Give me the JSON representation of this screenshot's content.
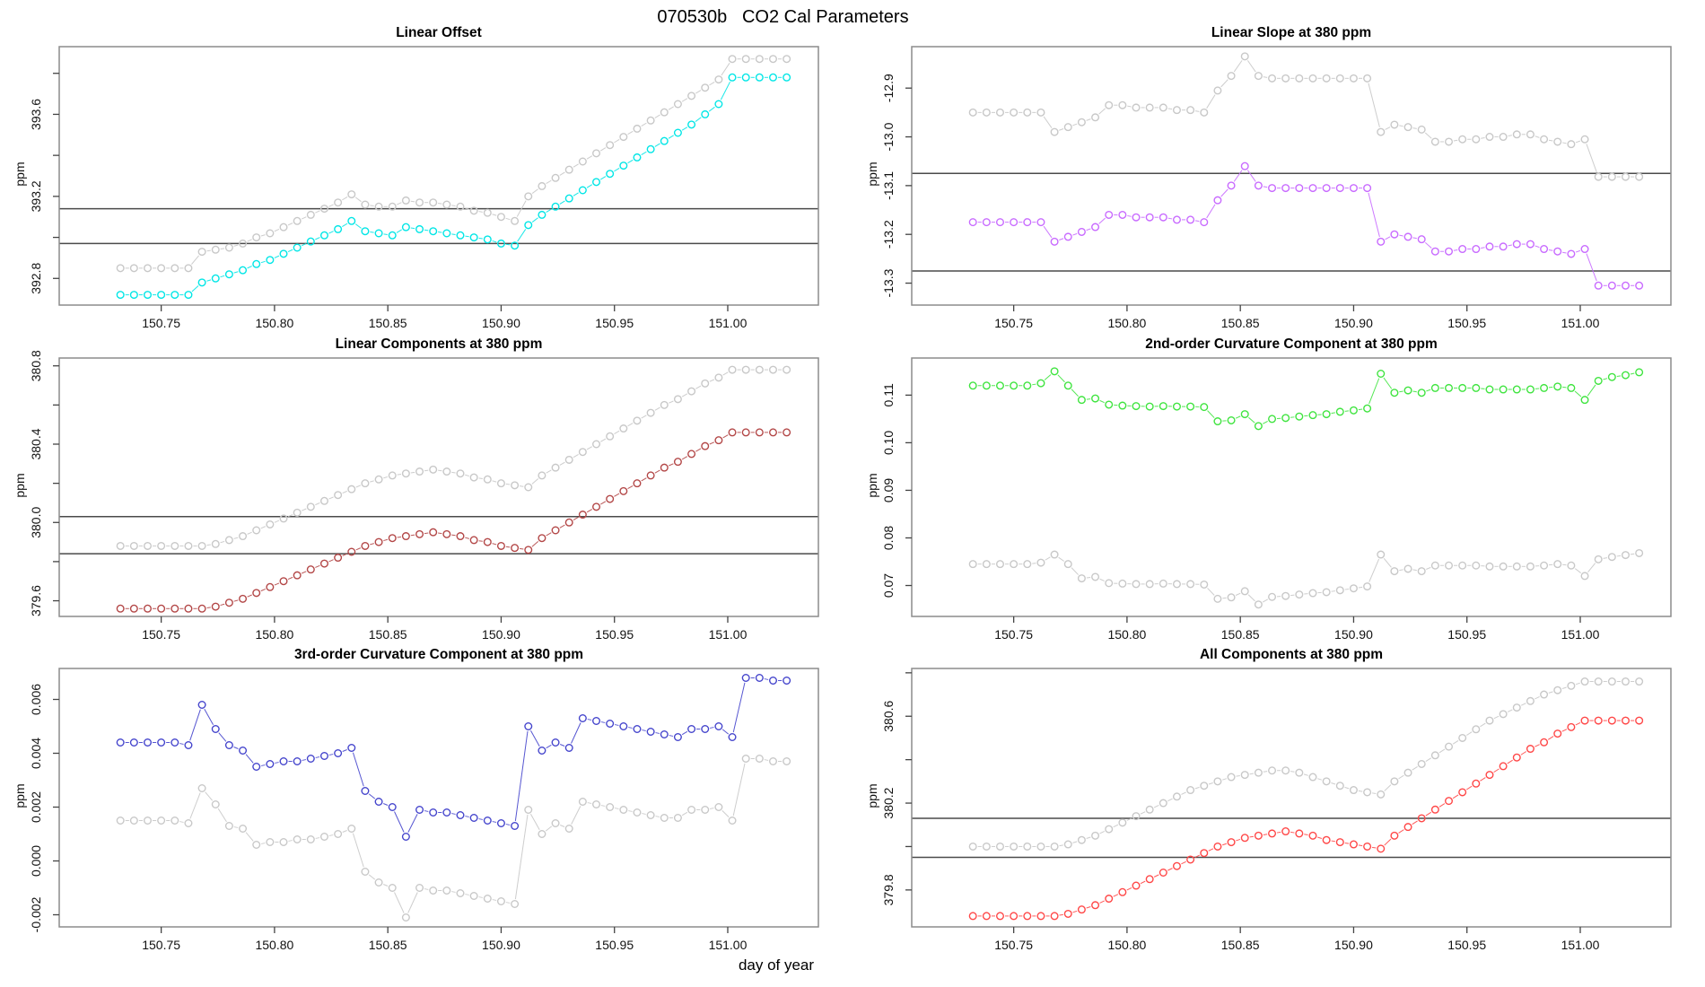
{
  "figure": {
    "title": "070530b   CO2 Cal Parameters",
    "xlabel": "day of year",
    "background": "#ffffff",
    "box_color": "#8c8c8c",
    "ref_line_color": "#4a4a4a",
    "tick_color": "#444444",
    "tick_label_color": "#111111",
    "x_lim": [
      150.705,
      151.04
    ],
    "x_ticks": [
      {
        "v": 150.75,
        "label": "150.75"
      },
      {
        "v": 150.8,
        "label": "150.80"
      },
      {
        "v": 150.85,
        "label": "150.85"
      },
      {
        "v": 150.9,
        "label": "150.90"
      },
      {
        "v": 150.95,
        "label": "150.95"
      },
      {
        "v": 151.0,
        "label": "151.00"
      }
    ],
    "x_days": [
      150.732,
      150.738,
      150.744,
      150.75,
      150.756,
      150.762,
      150.768,
      150.774,
      150.78,
      150.786,
      150.792,
      150.798,
      150.804,
      150.81,
      150.816,
      150.822,
      150.828,
      150.834,
      150.84,
      150.846,
      150.852,
      150.858,
      150.864,
      150.87,
      150.876,
      150.882,
      150.888,
      150.894,
      150.9,
      150.906,
      150.912,
      150.918,
      150.924,
      150.93,
      150.936,
      150.942,
      150.948,
      150.954,
      150.96,
      150.966,
      150.972,
      150.978,
      150.984,
      150.99,
      150.996,
      151.002,
      151.008,
      151.014,
      151.02,
      151.026
    ]
  },
  "chart_data": [
    {
      "type": "scatter",
      "title": "Linear Offset",
      "ylabel": "ppm",
      "ylim": [
        392.67,
        393.93
      ],
      "yticks": [
        {
          "v": 392.8,
          "label": "392.8"
        },
        {
          "v": 393.0,
          "label": ""
        },
        {
          "v": 393.2,
          "label": "393.2"
        },
        {
          "v": 393.4,
          "label": ""
        },
        {
          "v": 393.6,
          "label": "393.6"
        },
        {
          "v": 393.8,
          "label": ""
        }
      ],
      "ref_lines": [
        393.14,
        392.97
      ],
      "series": [
        {
          "name": "gray-circles",
          "color": "#c8c8c8",
          "values": [
            392.85,
            392.85,
            392.85,
            392.85,
            392.85,
            392.85,
            392.93,
            392.94,
            392.95,
            392.97,
            393.0,
            393.02,
            393.05,
            393.08,
            393.11,
            393.14,
            393.17,
            393.21,
            393.16,
            393.15,
            393.15,
            393.18,
            393.17,
            393.17,
            393.16,
            393.15,
            393.13,
            393.12,
            393.1,
            393.08,
            393.2,
            393.25,
            393.29,
            393.33,
            393.37,
            393.41,
            393.45,
            393.49,
            393.53,
            393.57,
            393.61,
            393.65,
            393.69,
            393.73,
            393.77,
            393.87,
            393.87,
            393.87,
            393.87,
            393.87
          ]
        },
        {
          "name": "cyan-circles",
          "color": "#00e6e6",
          "values": [
            392.72,
            392.72,
            392.72,
            392.72,
            392.72,
            392.72,
            392.78,
            392.8,
            392.82,
            392.84,
            392.87,
            392.89,
            392.92,
            392.95,
            392.98,
            393.01,
            393.04,
            393.08,
            393.03,
            393.02,
            393.01,
            393.05,
            393.04,
            393.03,
            393.02,
            393.01,
            393.0,
            392.99,
            392.97,
            392.96,
            393.06,
            393.11,
            393.15,
            393.19,
            393.23,
            393.27,
            393.31,
            393.35,
            393.39,
            393.43,
            393.47,
            393.51,
            393.55,
            393.6,
            393.65,
            393.78,
            393.78,
            393.78,
            393.78,
            393.78
          ]
        }
      ]
    },
    {
      "type": "scatter",
      "title": "Linear Slope at 380 ppm",
      "ylabel": "ppm",
      "ylim": [
        -13.345,
        -12.815
      ],
      "yticks": [
        {
          "v": -13.3,
          "label": "-13.3"
        },
        {
          "v": -13.2,
          "label": "-13.2"
        },
        {
          "v": -13.1,
          "label": "-13.1"
        },
        {
          "v": -13.0,
          "label": "-13.0"
        },
        {
          "v": -12.9,
          "label": "-12.9"
        }
      ],
      "ref_lines": [
        -13.075,
        -13.275
      ],
      "series": [
        {
          "name": "gray-circles",
          "color": "#c8c8c8",
          "values": [
            -12.95,
            -12.95,
            -12.95,
            -12.95,
            -12.95,
            -12.95,
            -12.99,
            -12.98,
            -12.97,
            -12.96,
            -12.935,
            -12.935,
            -12.94,
            -12.94,
            -12.94,
            -12.945,
            -12.945,
            -12.95,
            -12.905,
            -12.875,
            -12.835,
            -12.875,
            -12.88,
            -12.88,
            -12.88,
            -12.88,
            -12.88,
            -12.88,
            -12.88,
            -12.88,
            -12.99,
            -12.975,
            -12.98,
            -12.985,
            -13.01,
            -13.01,
            -13.005,
            -13.005,
            -13.0,
            -13.0,
            -12.995,
            -12.995,
            -13.005,
            -13.01,
            -13.015,
            -13.005,
            -13.082,
            -13.082,
            -13.082,
            -13.082
          ]
        },
        {
          "name": "magenta-circles",
          "color": "#c86aff",
          "values": [
            -13.175,
            -13.175,
            -13.175,
            -13.175,
            -13.175,
            -13.175,
            -13.215,
            -13.205,
            -13.195,
            -13.185,
            -13.16,
            -13.16,
            -13.165,
            -13.165,
            -13.165,
            -13.17,
            -13.17,
            -13.175,
            -13.13,
            -13.1,
            -13.06,
            -13.1,
            -13.105,
            -13.105,
            -13.105,
            -13.105,
            -13.105,
            -13.105,
            -13.105,
            -13.105,
            -13.215,
            -13.2,
            -13.205,
            -13.21,
            -13.235,
            -13.235,
            -13.23,
            -13.23,
            -13.225,
            -13.225,
            -13.22,
            -13.22,
            -13.23,
            -13.235,
            -13.24,
            -13.23,
            -13.305,
            -13.305,
            -13.305,
            -13.305
          ]
        }
      ]
    },
    {
      "type": "scatter",
      "title": "Linear Components at 380 ppm",
      "ylabel": "ppm",
      "ylim": [
        379.52,
        380.84
      ],
      "yticks": [
        {
          "v": 379.6,
          "label": "379.6"
        },
        {
          "v": 379.8,
          "label": ""
        },
        {
          "v": 380.0,
          "label": "380.0"
        },
        {
          "v": 380.2,
          "label": ""
        },
        {
          "v": 380.4,
          "label": "380.4"
        },
        {
          "v": 380.6,
          "label": ""
        },
        {
          "v": 380.8,
          "label": "380.8"
        }
      ],
      "ref_lines": [
        380.03,
        379.84
      ],
      "series": [
        {
          "name": "gray-circles",
          "color": "#c8c8c8",
          "values": [
            379.88,
            379.88,
            379.88,
            379.88,
            379.88,
            379.88,
            379.88,
            379.89,
            379.91,
            379.93,
            379.96,
            379.99,
            380.02,
            380.05,
            380.08,
            380.11,
            380.14,
            380.17,
            380.2,
            380.22,
            380.24,
            380.25,
            380.26,
            380.27,
            380.26,
            380.25,
            380.23,
            380.22,
            380.2,
            380.19,
            380.18,
            380.24,
            380.28,
            380.32,
            380.36,
            380.4,
            380.44,
            380.48,
            380.52,
            380.56,
            380.6,
            380.63,
            380.67,
            380.71,
            380.74,
            380.78,
            380.78,
            380.78,
            380.78,
            380.78
          ]
        },
        {
          "name": "darkred-circles",
          "color": "#b34747",
          "values": [
            379.56,
            379.56,
            379.56,
            379.56,
            379.56,
            379.56,
            379.56,
            379.57,
            379.59,
            379.61,
            379.64,
            379.67,
            379.7,
            379.73,
            379.76,
            379.79,
            379.82,
            379.85,
            379.88,
            379.9,
            379.92,
            379.93,
            379.94,
            379.95,
            379.94,
            379.93,
            379.91,
            379.9,
            379.88,
            379.87,
            379.86,
            379.92,
            379.96,
            380.0,
            380.04,
            380.08,
            380.12,
            380.16,
            380.2,
            380.24,
            380.28,
            380.31,
            380.35,
            380.39,
            380.42,
            380.46,
            380.46,
            380.46,
            380.46,
            380.46
          ]
        }
      ]
    },
    {
      "type": "scatter",
      "title": "2nd-order Curvature Component at 380 ppm",
      "ylabel": "ppm",
      "ylim": [
        0.0635,
        0.1178
      ],
      "yticks": [
        {
          "v": 0.07,
          "label": "0.07"
        },
        {
          "v": 0.08,
          "label": "0.08"
        },
        {
          "v": 0.09,
          "label": "0.09"
        },
        {
          "v": 0.1,
          "label": "0.10"
        },
        {
          "v": 0.11,
          "label": "0.11"
        }
      ],
      "ref_lines": [],
      "series": [
        {
          "name": "gray-circles",
          "color": "#c8c8c8",
          "values": [
            0.0745,
            0.0745,
            0.0745,
            0.0745,
            0.0745,
            0.0748,
            0.0765,
            0.0745,
            0.0715,
            0.0718,
            0.0705,
            0.0704,
            0.0703,
            0.0703,
            0.0704,
            0.0703,
            0.0703,
            0.0702,
            0.0672,
            0.0675,
            0.0688,
            0.066,
            0.0676,
            0.0678,
            0.0681,
            0.0684,
            0.0686,
            0.069,
            0.0694,
            0.0698,
            0.0765,
            0.073,
            0.0735,
            0.073,
            0.0742,
            0.0742,
            0.0742,
            0.0742,
            0.074,
            0.074,
            0.074,
            0.074,
            0.0742,
            0.0745,
            0.0742,
            0.072,
            0.0755,
            0.076,
            0.0764,
            0.0768
          ]
        },
        {
          "name": "green-circles",
          "color": "#3fe43f",
          "values": [
            0.112,
            0.112,
            0.112,
            0.112,
            0.112,
            0.1125,
            0.115,
            0.112,
            0.109,
            0.1093,
            0.108,
            0.1078,
            0.1077,
            0.1076,
            0.1077,
            0.1076,
            0.1076,
            0.1075,
            0.1045,
            0.1047,
            0.106,
            0.1035,
            0.105,
            0.1052,
            0.1055,
            0.1058,
            0.106,
            0.1065,
            0.1068,
            0.1072,
            0.1145,
            0.1105,
            0.111,
            0.1105,
            0.1115,
            0.1115,
            0.1115,
            0.1115,
            0.1112,
            0.1112,
            0.1112,
            0.1112,
            0.1115,
            0.1118,
            0.1115,
            0.109,
            0.113,
            0.1138,
            0.1142,
            0.1148
          ]
        }
      ]
    },
    {
      "type": "scatter",
      "title": "3rd-order Curvature Component at 380 ppm",
      "ylabel": "ppm",
      "ylim": [
        -0.00245,
        0.00715
      ],
      "yticks": [
        {
          "v": -0.002,
          "label": "-0.002"
        },
        {
          "v": 0.0,
          "label": "0.000"
        },
        {
          "v": 0.002,
          "label": "0.002"
        },
        {
          "v": 0.004,
          "label": "0.004"
        },
        {
          "v": 0.006,
          "label": "0.006"
        }
      ],
      "ref_lines": [],
      "series": [
        {
          "name": "gray-circles",
          "color": "#c8c8c8",
          "values": [
            0.0015,
            0.0015,
            0.0015,
            0.0015,
            0.0015,
            0.0014,
            0.0027,
            0.0021,
            0.0013,
            0.0012,
            0.0006,
            0.0007,
            0.0007,
            0.0008,
            0.0008,
            0.0009,
            0.001,
            0.0012,
            -0.0004,
            -0.0008,
            -0.001,
            -0.0021,
            -0.001,
            -0.0011,
            -0.0011,
            -0.0012,
            -0.0013,
            -0.0014,
            -0.0015,
            -0.0016,
            0.0019,
            0.001,
            0.0014,
            0.0012,
            0.0022,
            0.0021,
            0.002,
            0.0019,
            0.0018,
            0.0017,
            0.0016,
            0.0016,
            0.0019,
            0.0019,
            0.002,
            0.0015,
            0.0038,
            0.0038,
            0.0037,
            0.0037
          ]
        },
        {
          "name": "blue-circles",
          "color": "#4444cc",
          "values": [
            0.0044,
            0.0044,
            0.0044,
            0.0044,
            0.0044,
            0.0043,
            0.0058,
            0.0049,
            0.0043,
            0.0041,
            0.0035,
            0.0036,
            0.0037,
            0.0037,
            0.0038,
            0.0039,
            0.004,
            0.0042,
            0.0026,
            0.0022,
            0.002,
            0.0009,
            0.0019,
            0.0018,
            0.0018,
            0.0017,
            0.0016,
            0.0015,
            0.0014,
            0.0013,
            0.005,
            0.0041,
            0.0044,
            0.0042,
            0.0053,
            0.0052,
            0.0051,
            0.005,
            0.0049,
            0.0048,
            0.0047,
            0.0046,
            0.0049,
            0.0049,
            0.005,
            0.0046,
            0.0068,
            0.0068,
            0.0067,
            0.0067
          ]
        }
      ]
    },
    {
      "type": "scatter",
      "title": "All Components at 380 ppm",
      "ylabel": "ppm",
      "ylim": [
        379.63,
        380.82
      ],
      "yticks": [
        {
          "v": 379.8,
          "label": "379.8"
        },
        {
          "v": 380.0,
          "label": ""
        },
        {
          "v": 380.2,
          "label": "380.2"
        },
        {
          "v": 380.4,
          "label": ""
        },
        {
          "v": 380.6,
          "label": "380.6"
        },
        {
          "v": 380.8,
          "label": ""
        }
      ],
      "ref_lines": [
        380.13,
        379.95
      ],
      "series": [
        {
          "name": "gray-circles",
          "color": "#c8c8c8",
          "values": [
            380.0,
            380.0,
            380.0,
            380.0,
            380.0,
            380.0,
            380.0,
            380.01,
            380.03,
            380.05,
            380.08,
            380.11,
            380.14,
            380.17,
            380.2,
            380.23,
            380.26,
            380.28,
            380.3,
            380.32,
            380.33,
            380.34,
            380.35,
            380.35,
            380.34,
            380.32,
            380.3,
            380.28,
            380.26,
            380.25,
            380.24,
            380.3,
            380.34,
            380.38,
            380.42,
            380.46,
            380.5,
            380.54,
            380.58,
            380.61,
            380.64,
            380.67,
            380.7,
            380.72,
            380.74,
            380.76,
            380.76,
            380.76,
            380.76,
            380.76
          ]
        },
        {
          "name": "red-circles",
          "color": "#ff4747",
          "values": [
            379.68,
            379.68,
            379.68,
            379.68,
            379.68,
            379.68,
            379.68,
            379.69,
            379.71,
            379.73,
            379.76,
            379.79,
            379.82,
            379.85,
            379.88,
            379.91,
            379.94,
            379.97,
            380.0,
            380.02,
            380.04,
            380.05,
            380.06,
            380.07,
            380.06,
            380.05,
            380.03,
            380.02,
            380.01,
            380.0,
            379.99,
            380.05,
            380.09,
            380.13,
            380.17,
            380.21,
            380.25,
            380.29,
            380.33,
            380.37,
            380.41,
            380.45,
            380.48,
            380.52,
            380.55,
            380.58,
            380.58,
            380.58,
            380.58,
            380.58
          ]
        }
      ]
    }
  ]
}
